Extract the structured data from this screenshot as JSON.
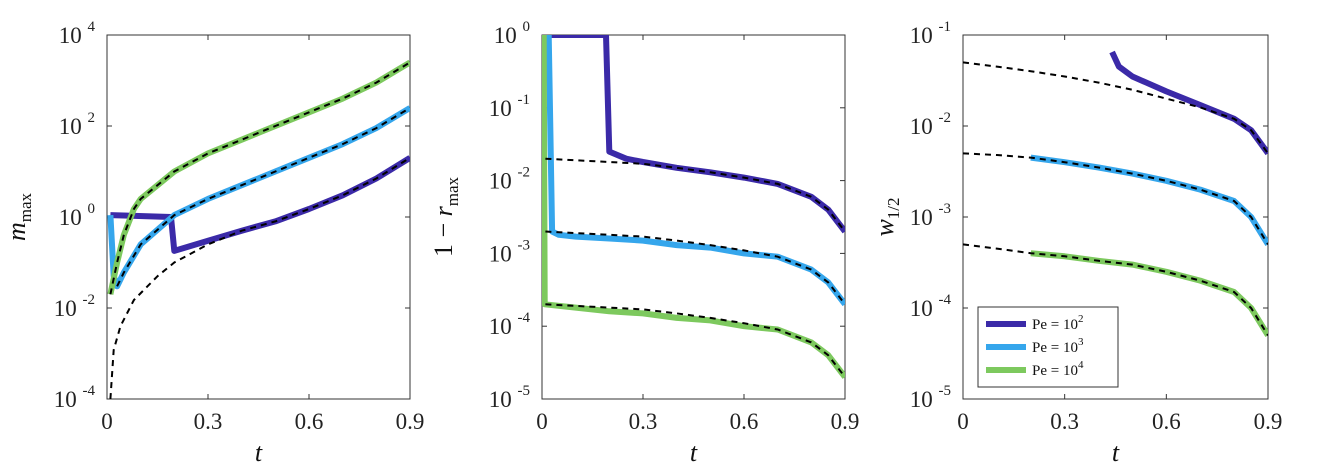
{
  "figure": {
    "legend": {
      "entries": [
        {
          "prefix": "Pe = 10",
          "exp": "2",
          "color": "#3b2aa8"
        },
        {
          "prefix": "Pe = 10",
          "exp": "3",
          "color": "#35a6ec"
        },
        {
          "prefix": "Pe = 10",
          "exp": "4",
          "color": "#7dc95e"
        }
      ],
      "placement": "bottom-left of right panel"
    }
  },
  "chart_data": [
    {
      "type": "line",
      "xlabel": "t",
      "ylabel": {
        "base": "m",
        "sub": "max"
      },
      "xlim": [
        0,
        0.9
      ],
      "ylim": [
        0.0001,
        10000
      ],
      "yscale": "log",
      "xticks": [
        "0",
        "0.3",
        "0.6",
        "0.9"
      ],
      "yticks": [
        {
          "base": "10",
          "exp": "-4",
          "value": 0.0001
        },
        {
          "base": "10",
          "exp": "-2",
          "value": 0.01
        },
        {
          "base": "10",
          "exp": "0",
          "value": 1
        },
        {
          "base": "10",
          "exp": "2",
          "value": 100
        },
        {
          "base": "10",
          "exp": "4",
          "value": 10000
        }
      ],
      "grid": false,
      "series": [
        {
          "color": "#3b2aa8",
          "points": [
            [
              0.01,
              1.1
            ],
            [
              0.19,
              1.0
            ],
            [
              0.2,
              0.18
            ],
            [
              0.3,
              0.3
            ],
            [
              0.4,
              0.5
            ],
            [
              0.5,
              0.8
            ],
            [
              0.6,
              1.5
            ],
            [
              0.7,
              3
            ],
            [
              0.8,
              7
            ],
            [
              0.9,
              20
            ]
          ]
        },
        {
          "color": "#35a6ec",
          "points": [
            [
              0.01,
              1.1
            ],
            [
              0.02,
              0.05
            ],
            [
              0.03,
              0.03
            ],
            [
              0.05,
              0.06
            ],
            [
              0.1,
              0.25
            ],
            [
              0.2,
              1.1
            ],
            [
              0.3,
              2.5
            ],
            [
              0.4,
              5
            ],
            [
              0.5,
              10
            ],
            [
              0.6,
              20
            ],
            [
              0.7,
              40
            ],
            [
              0.8,
              90
            ],
            [
              0.9,
              250
            ]
          ]
        },
        {
          "color": "#7dc95e",
          "points": [
            [
              0.01,
              0.02
            ],
            [
              0.03,
              0.1
            ],
            [
              0.05,
              0.4
            ],
            [
              0.08,
              1.5
            ],
            [
              0.1,
              2.5
            ],
            [
              0.2,
              10
            ],
            [
              0.3,
              25
            ],
            [
              0.4,
              50
            ],
            [
              0.5,
              100
            ],
            [
              0.6,
              200
            ],
            [
              0.7,
              400
            ],
            [
              0.8,
              900
            ],
            [
              0.9,
              2500
            ]
          ]
        }
      ],
      "reference_series": [
        {
          "style": "dashed",
          "color": "#000000",
          "points": [
            [
              0.01,
              0.0001
            ],
            [
              0.02,
              0.0012
            ],
            [
              0.04,
              0.004
            ],
            [
              0.08,
              0.015
            ],
            [
              0.15,
              0.05
            ],
            [
              0.2,
              0.1
            ],
            [
              0.3,
              0.25
            ],
            [
              0.4,
              0.5
            ],
            [
              0.5,
              0.8
            ],
            [
              0.6,
              1.5
            ],
            [
              0.7,
              3
            ],
            [
              0.8,
              7
            ],
            [
              0.9,
              20
            ]
          ]
        },
        {
          "style": "dashed",
          "color": "#000000",
          "points": [
            [
              0.03,
              0.03
            ],
            [
              0.05,
              0.06
            ],
            [
              0.1,
              0.25
            ],
            [
              0.2,
              1.1
            ],
            [
              0.3,
              2.5
            ],
            [
              0.4,
              5
            ],
            [
              0.5,
              10
            ],
            [
              0.6,
              20
            ],
            [
              0.7,
              40
            ],
            [
              0.8,
              90
            ],
            [
              0.9,
              250
            ]
          ]
        },
        {
          "style": "dashed",
          "color": "#000000",
          "points": [
            [
              0.01,
              0.02
            ],
            [
              0.03,
              0.1
            ],
            [
              0.05,
              0.4
            ],
            [
              0.08,
              1.5
            ],
            [
              0.1,
              2.5
            ],
            [
              0.2,
              10
            ],
            [
              0.3,
              25
            ],
            [
              0.4,
              50
            ],
            [
              0.5,
              100
            ],
            [
              0.6,
              200
            ],
            [
              0.7,
              400
            ],
            [
              0.8,
              900
            ],
            [
              0.9,
              2500
            ]
          ]
        }
      ]
    },
    {
      "type": "line",
      "xlabel": "t",
      "ylabel": {
        "prefix": "1 − ",
        "base": "r",
        "sub": "max"
      },
      "xlim": [
        0,
        0.9
      ],
      "ylim": [
        1e-05,
        1
      ],
      "yscale": "log",
      "xticks": [
        "0",
        "0.3",
        "0.6",
        "0.9"
      ],
      "yticks": [
        {
          "base": "10",
          "exp": "-5",
          "value": 1e-05
        },
        {
          "base": "10",
          "exp": "-4",
          "value": 0.0001
        },
        {
          "base": "10",
          "exp": "-3",
          "value": 0.001
        },
        {
          "base": "10",
          "exp": "-2",
          "value": 0.01
        },
        {
          "base": "10",
          "exp": "-1",
          "value": 0.1
        },
        {
          "base": "10",
          "exp": "0",
          "value": 1
        }
      ],
      "grid": false,
      "series": [
        {
          "color": "#3b2aa8",
          "points": [
            [
              0.02,
              1
            ],
            [
              0.19,
              1
            ],
            [
              0.2,
              0.025
            ],
            [
              0.25,
              0.02
            ],
            [
              0.3,
              0.018
            ],
            [
              0.4,
              0.015
            ],
            [
              0.5,
              0.013
            ],
            [
              0.6,
              0.011
            ],
            [
              0.7,
              0.009
            ],
            [
              0.8,
              0.006
            ],
            [
              0.85,
              0.004
            ],
            [
              0.9,
              0.002
            ]
          ]
        },
        {
          "color": "#35a6ec",
          "points": [
            [
              0.02,
              1
            ],
            [
              0.03,
              0.002
            ],
            [
              0.05,
              0.0018
            ],
            [
              0.1,
              0.0017
            ],
            [
              0.2,
              0.0016
            ],
            [
              0.3,
              0.0015
            ],
            [
              0.4,
              0.0013
            ],
            [
              0.5,
              0.0012
            ],
            [
              0.6,
              0.001
            ],
            [
              0.7,
              0.0009
            ],
            [
              0.8,
              0.0006
            ],
            [
              0.85,
              0.0004
            ],
            [
              0.9,
              0.0002
            ]
          ]
        },
        {
          "color": "#7dc95e",
          "points": [
            [
              0.005,
              1
            ],
            [
              0.008,
              0.0002
            ],
            [
              0.1,
              0.00018
            ],
            [
              0.2,
              0.00016
            ],
            [
              0.3,
              0.00015
            ],
            [
              0.4,
              0.00013
            ],
            [
              0.5,
              0.00012
            ],
            [
              0.6,
              0.0001
            ],
            [
              0.7,
              9e-05
            ],
            [
              0.8,
              6e-05
            ],
            [
              0.85,
              4e-05
            ],
            [
              0.9,
              2e-05
            ]
          ]
        }
      ],
      "reference_series": [
        {
          "style": "dashed",
          "color": "#000000",
          "points": [
            [
              0.01,
              0.02
            ],
            [
              0.1,
              0.019
            ],
            [
              0.2,
              0.018
            ],
            [
              0.3,
              0.017
            ],
            [
              0.4,
              0.015
            ],
            [
              0.5,
              0.013
            ],
            [
              0.6,
              0.011
            ],
            [
              0.7,
              0.009
            ],
            [
              0.8,
              0.006
            ],
            [
              0.85,
              0.004
            ],
            [
              0.9,
              0.002
            ]
          ]
        },
        {
          "style": "dashed",
          "color": "#000000",
          "points": [
            [
              0.01,
              0.002
            ],
            [
              0.1,
              0.0019
            ],
            [
              0.2,
              0.0018
            ],
            [
              0.3,
              0.0017
            ],
            [
              0.4,
              0.0015
            ],
            [
              0.5,
              0.0013
            ],
            [
              0.6,
              0.0011
            ],
            [
              0.7,
              0.0009
            ],
            [
              0.8,
              0.0006
            ],
            [
              0.85,
              0.0004
            ],
            [
              0.9,
              0.0002
            ]
          ]
        },
        {
          "style": "dashed",
          "color": "#000000",
          "points": [
            [
              0.01,
              0.0002
            ],
            [
              0.1,
              0.00019
            ],
            [
              0.2,
              0.00018
            ],
            [
              0.3,
              0.00017
            ],
            [
              0.4,
              0.00015
            ],
            [
              0.5,
              0.00013
            ],
            [
              0.6,
              0.00011
            ],
            [
              0.7,
              9e-05
            ],
            [
              0.8,
              6e-05
            ],
            [
              0.85,
              4e-05
            ],
            [
              0.9,
              2e-05
            ]
          ]
        }
      ]
    },
    {
      "type": "line",
      "xlabel": "t",
      "ylabel": {
        "base": "w",
        "sub": "1/2"
      },
      "xlim": [
        0,
        0.9
      ],
      "ylim": [
        1e-05,
        0.1
      ],
      "yscale": "log",
      "xticks": [
        "0",
        "0.3",
        "0.6",
        "0.9"
      ],
      "yticks": [
        {
          "base": "10",
          "exp": "-5",
          "value": 1e-05
        },
        {
          "base": "10",
          "exp": "-4",
          "value": 0.0001
        },
        {
          "base": "10",
          "exp": "-3",
          "value": 0.001
        },
        {
          "base": "10",
          "exp": "-2",
          "value": 0.01
        },
        {
          "base": "10",
          "exp": "-1",
          "value": 0.1
        }
      ],
      "grid": false,
      "series": [
        {
          "color": "#3b2aa8",
          "points": [
            [
              0.44,
              0.065
            ],
            [
              0.46,
              0.045
            ],
            [
              0.5,
              0.035
            ],
            [
              0.6,
              0.024
            ],
            [
              0.7,
              0.017
            ],
            [
              0.8,
              0.012
            ],
            [
              0.85,
              0.009
            ],
            [
              0.9,
              0.005
            ]
          ]
        },
        {
          "color": "#35a6ec",
          "points": [
            [
              0.2,
              0.0045
            ],
            [
              0.3,
              0.004
            ],
            [
              0.4,
              0.0035
            ],
            [
              0.5,
              0.003
            ],
            [
              0.6,
              0.0025
            ],
            [
              0.7,
              0.002
            ],
            [
              0.8,
              0.0015
            ],
            [
              0.85,
              0.001
            ],
            [
              0.9,
              0.0005
            ]
          ]
        },
        {
          "color": "#7dc95e",
          "points": [
            [
              0.2,
              0.0004
            ],
            [
              0.3,
              0.00037
            ],
            [
              0.4,
              0.00033
            ],
            [
              0.5,
              0.0003
            ],
            [
              0.6,
              0.00025
            ],
            [
              0.7,
              0.0002
            ],
            [
              0.8,
              0.00015
            ],
            [
              0.85,
              0.0001
            ],
            [
              0.9,
              5e-05
            ]
          ]
        }
      ],
      "reference_series": [
        {
          "style": "dashed",
          "color": "#000000",
          "points": [
            [
              0,
              0.05
            ],
            [
              0.1,
              0.045
            ],
            [
              0.2,
              0.04
            ],
            [
              0.3,
              0.035
            ],
            [
              0.4,
              0.03
            ],
            [
              0.5,
              0.025
            ],
            [
              0.6,
              0.02
            ],
            [
              0.7,
              0.016
            ],
            [
              0.8,
              0.012
            ],
            [
              0.85,
              0.009
            ],
            [
              0.9,
              0.005
            ]
          ]
        },
        {
          "style": "dashed",
          "color": "#000000",
          "points": [
            [
              0,
              0.005
            ],
            [
              0.1,
              0.0048
            ],
            [
              0.2,
              0.0045
            ],
            [
              0.3,
              0.004
            ],
            [
              0.4,
              0.0035
            ],
            [
              0.5,
              0.003
            ],
            [
              0.6,
              0.0025
            ],
            [
              0.7,
              0.002
            ],
            [
              0.8,
              0.0015
            ],
            [
              0.85,
              0.001
            ],
            [
              0.9,
              0.0005
            ]
          ]
        },
        {
          "style": "dashed",
          "color": "#000000",
          "points": [
            [
              0,
              0.0005
            ],
            [
              0.1,
              0.00045
            ],
            [
              0.2,
              0.0004
            ],
            [
              0.3,
              0.00037
            ],
            [
              0.4,
              0.00033
            ],
            [
              0.5,
              0.0003
            ],
            [
              0.6,
              0.00025
            ],
            [
              0.7,
              0.0002
            ],
            [
              0.8,
              0.00015
            ],
            [
              0.85,
              0.0001
            ],
            [
              0.9,
              5e-05
            ]
          ]
        }
      ]
    }
  ]
}
